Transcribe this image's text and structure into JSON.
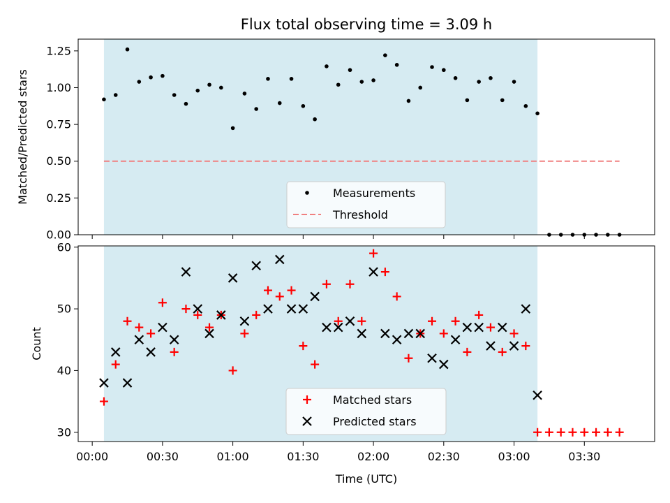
{
  "chart_data": [
    {
      "type": "scatter",
      "title": "Flux total observing time = 3.09 h",
      "xlabel": "",
      "ylabel": "Matched/Predicted stars",
      "ylim": [
        0,
        1.33
      ],
      "yticks": [
        0.0,
        0.25,
        0.5,
        0.75,
        1.0,
        1.25
      ],
      "ytick_labels": [
        "0.00",
        "0.25",
        "0.50",
        "0.75",
        "1.00",
        "1.25"
      ],
      "x_min_range": [
        -6,
        240
      ],
      "shaded_region_min": [
        5,
        190
      ],
      "series": [
        {
          "name": "Measurements",
          "marker": "dot",
          "color": "#000000",
          "x": [
            5,
            10,
            15,
            20,
            25,
            30,
            35,
            40,
            45,
            50,
            55,
            60,
            65,
            70,
            75,
            80,
            85,
            90,
            95,
            100,
            105,
            110,
            115,
            120,
            125,
            130,
            135,
            140,
            145,
            150,
            155,
            160,
            165,
            170,
            175,
            180,
            185,
            190,
            195,
            200,
            205,
            210,
            215,
            220,
            225
          ],
          "values": [
            0.92,
            0.95,
            1.26,
            1.04,
            1.07,
            1.08,
            0.95,
            0.89,
            0.98,
            1.02,
            1.0,
            0.725,
            0.96,
            0.855,
            1.06,
            0.895,
            1.06,
            0.875,
            0.785,
            1.145,
            1.02,
            1.12,
            1.04,
            1.05,
            1.22,
            1.155,
            0.91,
            1.0,
            1.14,
            1.12,
            1.065,
            0.915,
            1.04,
            1.065,
            0.915,
            1.04,
            0.875,
            0.825,
            0.0,
            0.0,
            0.0,
            0.0,
            0.0,
            0.0,
            0.0
          ]
        },
        {
          "name": "Threshold",
          "style": "dashed",
          "color": "#f08080",
          "x": [
            5,
            225
          ],
          "values": [
            0.5,
            0.5
          ]
        }
      ],
      "legend_position": "lower-center"
    },
    {
      "type": "scatter",
      "title": "",
      "xlabel": "Time (UTC)",
      "ylabel": "Count",
      "ylim": [
        28.5,
        60.2
      ],
      "yticks": [
        30,
        40,
        50,
        60
      ],
      "ytick_labels": [
        "30",
        "40",
        "50",
        "60"
      ],
      "xticks_min": [
        0,
        30,
        60,
        90,
        120,
        150,
        180,
        210
      ],
      "xtick_labels": [
        "00:00",
        "00:30",
        "01:00",
        "01:30",
        "02:00",
        "02:30",
        "03:00",
        "03:30"
      ],
      "x_min_range": [
        -6,
        240
      ],
      "shaded_region_min": [
        5,
        190
      ],
      "series": [
        {
          "name": "Matched stars",
          "marker": "plus",
          "color": "#ff0000",
          "x": [
            5,
            10,
            15,
            20,
            25,
            30,
            35,
            40,
            45,
            50,
            55,
            60,
            65,
            70,
            75,
            80,
            85,
            90,
            95,
            100,
            105,
            110,
            115,
            120,
            125,
            130,
            135,
            140,
            145,
            150,
            155,
            160,
            165,
            170,
            175,
            180,
            185,
            190,
            195,
            200,
            205,
            210,
            215,
            220,
            225
          ],
          "values": [
            35,
            41,
            48,
            47,
            46,
            51,
            43,
            50,
            49,
            47,
            49,
            40,
            46,
            49,
            53,
            52,
            53,
            44,
            41,
            54,
            48,
            54,
            48,
            59,
            56,
            52,
            42,
            46,
            48,
            46,
            48,
            43,
            49,
            47,
            43,
            46,
            44,
            30,
            30,
            30,
            30,
            30,
            30,
            30,
            30
          ]
        },
        {
          "name": "Predicted stars",
          "marker": "x",
          "color": "#000000",
          "x": [
            5,
            10,
            15,
            20,
            25,
            30,
            35,
            40,
            45,
            50,
            55,
            60,
            65,
            70,
            75,
            80,
            85,
            90,
            95,
            100,
            105,
            110,
            115,
            120,
            125,
            130,
            135,
            140,
            145,
            150,
            155,
            160,
            165,
            170,
            175,
            180,
            185,
            190
          ],
          "values": [
            38,
            43,
            38,
            45,
            43,
            47,
            45,
            56,
            50,
            46,
            49,
            55,
            48,
            57,
            50,
            58,
            50,
            50,
            52,
            47,
            47,
            48,
            46,
            56,
            46,
            45,
            46,
            46,
            42,
            41,
            45,
            47,
            47,
            44,
            47,
            44,
            50,
            36
          ]
        }
      ],
      "legend_position": "lower-center"
    }
  ]
}
